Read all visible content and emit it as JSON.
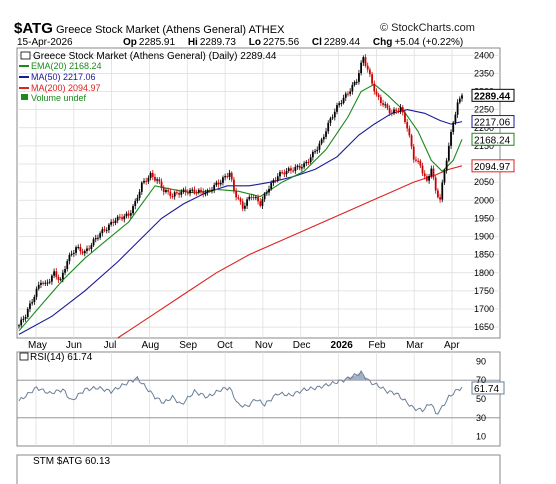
{
  "header": {
    "symbol": "$ATG",
    "name": "Greece Stock Market (Athens General)",
    "exchange": "ATHEX",
    "brand": "© StockCharts.com",
    "date": "15-Apr-2026",
    "open_label": "Op",
    "open": "2285.91",
    "high_label": "Hi",
    "high": "2289.73",
    "low_label": "Lo",
    "low": "2275.56",
    "close_label": "Cl",
    "close": "2289.44",
    "chg_label": "Chg",
    "chg": "+5.04 (+0.22%)"
  },
  "legend": {
    "main": "Greece Stock Market (Athens General) (Daily) 2289.44",
    "ema": "EMA(20) 2168.24",
    "ma50": "MA(50) 2217.06",
    "ma200": "MA(200) 2094.97",
    "volume": "Volume undef"
  },
  "rsi_legend": "RSI(14) 61.74",
  "stm_legend": "STM $ATG 60.13",
  "colors": {
    "up": "#000000",
    "down": "#cc0000",
    "ema": "#1a8a1a",
    "ma50": "#1a1a99",
    "ma200": "#dd2222",
    "rsi_line": "#6a7f99",
    "rsi_fill": "#9fb0c6",
    "grid": "#dcdcdc",
    "panel_border": "#888888"
  },
  "chart_data": [
    {
      "type": "candlestick",
      "title": "Greece Stock Market (Athens General) (Daily) 2289.44",
      "x_labels": [
        "May",
        "Jun",
        "Jul",
        "Aug",
        "Sep",
        "Oct",
        "Nov",
        "Dec",
        "2026",
        "Feb",
        "Mar",
        "Apr"
      ],
      "y_ticks": [
        1650,
        1700,
        1750,
        1800,
        1850,
        1900,
        1950,
        2000,
        2050,
        2100,
        2150,
        2200,
        2250,
        2300,
        2350,
        2400
      ],
      "ylim": [
        1620,
        2420
      ],
      "grid": true,
      "legend_position": "top-left",
      "price_tags": [
        {
          "label": "2289.44",
          "value": 2289.44,
          "color": "#000000",
          "bold": true
        },
        {
          "label": "2217.06",
          "value": 2217.06,
          "color": "#1a1a99"
        },
        {
          "label": "2168.24",
          "value": 2168.24,
          "color": "#1a8a1a"
        },
        {
          "label": "2094.97",
          "value": 2094.97,
          "color": "#dd2222"
        }
      ],
      "close_path": [
        [
          0,
          1655
        ],
        [
          3,
          1680
        ],
        [
          6,
          1720
        ],
        [
          10,
          1780
        ],
        [
          12,
          1770
        ],
        [
          16,
          1800
        ],
        [
          19,
          1775
        ],
        [
          22,
          1830
        ],
        [
          26,
          1870
        ],
        [
          30,
          1860
        ],
        [
          36,
          1900
        ],
        [
          40,
          1920
        ],
        [
          44,
          1950
        ],
        [
          48,
          1960
        ],
        [
          50,
          1960
        ],
        [
          53,
          1990
        ],
        [
          56,
          2040
        ],
        [
          60,
          2070
        ],
        [
          63,
          2060
        ],
        [
          66,
          2030
        ],
        [
          70,
          2010
        ],
        [
          74,
          2020
        ],
        [
          80,
          2030
        ],
        [
          86,
          2020
        ],
        [
          92,
          2050
        ],
        [
          96,
          2080
        ],
        [
          98,
          2030
        ],
        [
          102,
          1980
        ],
        [
          106,
          2010
        ],
        [
          110,
          1990
        ],
        [
          114,
          2040
        ],
        [
          118,
          2070
        ],
        [
          124,
          2080
        ],
        [
          130,
          2100
        ],
        [
          134,
          2130
        ],
        [
          138,
          2160
        ],
        [
          142,
          2220
        ],
        [
          146,
          2270
        ],
        [
          150,
          2300
        ],
        [
          154,
          2330
        ],
        [
          157,
          2390
        ],
        [
          160,
          2340
        ],
        [
          163,
          2290
        ],
        [
          166,
          2270
        ],
        [
          170,
          2240
        ],
        [
          174,
          2250
        ],
        [
          177,
          2200
        ],
        [
          180,
          2120
        ],
        [
          183,
          2100
        ],
        [
          186,
          2050
        ],
        [
          188,
          2090
        ],
        [
          190,
          2020
        ],
        [
          192,
          2000
        ],
        [
          194,
          2080
        ],
        [
          196,
          2150
        ],
        [
          198,
          2220
        ],
        [
          200,
          2270
        ],
        [
          202,
          2289.44
        ]
      ],
      "ema20_path": [
        [
          0,
          1640
        ],
        [
          10,
          1710
        ],
        [
          20,
          1780
        ],
        [
          30,
          1840
        ],
        [
          40,
          1890
        ],
        [
          50,
          1940
        ],
        [
          56,
          1990
        ],
        [
          62,
          2040
        ],
        [
          70,
          2030
        ],
        [
          80,
          2020
        ],
        [
          90,
          2030
        ],
        [
          100,
          2025
        ],
        [
          110,
          2010
        ],
        [
          120,
          2050
        ],
        [
          130,
          2080
        ],
        [
          140,
          2140
        ],
        [
          150,
          2230
        ],
        [
          156,
          2300
        ],
        [
          162,
          2320
        ],
        [
          168,
          2290
        ],
        [
          175,
          2250
        ],
        [
          182,
          2190
        ],
        [
          188,
          2110
        ],
        [
          193,
          2080
        ],
        [
          198,
          2110
        ],
        [
          202,
          2168.24
        ]
      ],
      "ma50_path": [
        [
          0,
          1630
        ],
        [
          15,
          1680
        ],
        [
          30,
          1750
        ],
        [
          45,
          1830
        ],
        [
          55,
          1890
        ],
        [
          65,
          1950
        ],
        [
          75,
          1990
        ],
        [
          85,
          2020
        ],
        [
          95,
          2040
        ],
        [
          105,
          2040
        ],
        [
          115,
          2050
        ],
        [
          125,
          2065
        ],
        [
          135,
          2085
        ],
        [
          145,
          2120
        ],
        [
          155,
          2180
        ],
        [
          162,
          2210
        ],
        [
          170,
          2240
        ],
        [
          177,
          2250
        ],
        [
          185,
          2240
        ],
        [
          192,
          2220
        ],
        [
          197,
          2210
        ],
        [
          202,
          2217.06
        ]
      ],
      "ma200_path": [
        [
          45,
          1620
        ],
        [
          60,
          1680
        ],
        [
          75,
          1740
        ],
        [
          90,
          1800
        ],
        [
          105,
          1850
        ],
        [
          120,
          1890
        ],
        [
          135,
          1930
        ],
        [
          150,
          1970
        ],
        [
          165,
          2010
        ],
        [
          180,
          2050
        ],
        [
          190,
          2070
        ],
        [
          196,
          2085
        ],
        [
          202,
          2094.97
        ]
      ]
    },
    {
      "type": "line",
      "title": "RSI(14) 61.74",
      "y_ticks": [
        10,
        30,
        50,
        70,
        90
      ],
      "ylim": [
        0,
        100
      ],
      "reference_lines": [
        30,
        70
      ],
      "last_value": 61.74,
      "path": [
        [
          0,
          48
        ],
        [
          8,
          62
        ],
        [
          14,
          56
        ],
        [
          20,
          60
        ],
        [
          24,
          48
        ],
        [
          30,
          60
        ],
        [
          36,
          62
        ],
        [
          42,
          58
        ],
        [
          50,
          68
        ],
        [
          54,
          72
        ],
        [
          58,
          62
        ],
        [
          62,
          52
        ],
        [
          66,
          46
        ],
        [
          70,
          52
        ],
        [
          74,
          44
        ],
        [
          80,
          58
        ],
        [
          86,
          52
        ],
        [
          92,
          60
        ],
        [
          96,
          62
        ],
        [
          100,
          44
        ],
        [
          104,
          42
        ],
        [
          108,
          50
        ],
        [
          112,
          44
        ],
        [
          118,
          56
        ],
        [
          124,
          54
        ],
        [
          130,
          60
        ],
        [
          136,
          62
        ],
        [
          142,
          66
        ],
        [
          148,
          70
        ],
        [
          152,
          74
        ],
        [
          156,
          78
        ],
        [
          160,
          68
        ],
        [
          164,
          64
        ],
        [
          168,
          58
        ],
        [
          172,
          56
        ],
        [
          176,
          48
        ],
        [
          180,
          40
        ],
        [
          184,
          38
        ],
        [
          188,
          46
        ],
        [
          190,
          34
        ],
        [
          192,
          38
        ],
        [
          196,
          52
        ],
        [
          200,
          60
        ],
        [
          202,
          61.74
        ]
      ]
    }
  ]
}
